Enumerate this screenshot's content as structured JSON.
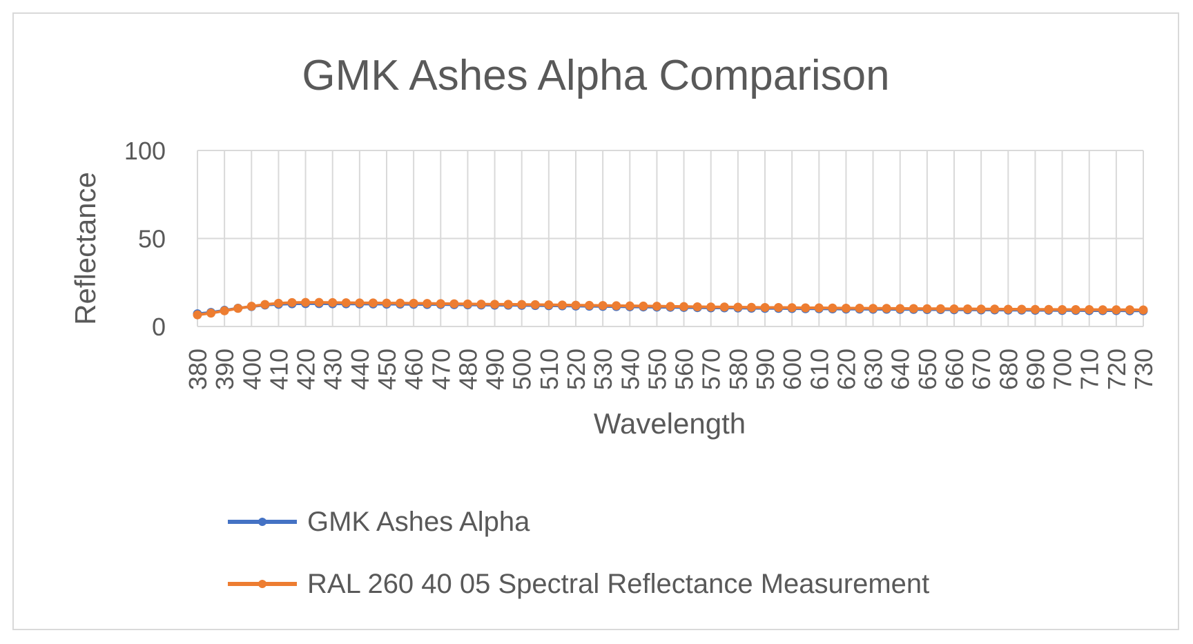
{
  "colors": {
    "series1": "#4472c4",
    "series2": "#ed7d31",
    "grid": "#d9d9d9",
    "text": "#595959"
  },
  "chart_data": {
    "type": "line",
    "title": "GMK Ashes Alpha Comparison",
    "xlabel": "Wavelength",
    "ylabel": "Reflectance",
    "ylim": [
      0,
      100
    ],
    "yticks": [
      0,
      50,
      100
    ],
    "x": [
      380,
      385,
      390,
      395,
      400,
      405,
      410,
      415,
      420,
      425,
      430,
      435,
      440,
      445,
      450,
      455,
      460,
      465,
      470,
      475,
      480,
      485,
      490,
      495,
      500,
      505,
      510,
      515,
      520,
      525,
      530,
      535,
      540,
      545,
      550,
      555,
      560,
      565,
      570,
      575,
      580,
      585,
      590,
      595,
      600,
      605,
      610,
      615,
      620,
      625,
      630,
      635,
      640,
      645,
      650,
      655,
      660,
      665,
      670,
      675,
      680,
      685,
      690,
      695,
      700,
      705,
      710,
      715,
      720,
      725,
      730
    ],
    "xtick_labels": [
      "380",
      "390",
      "400",
      "410",
      "420",
      "430",
      "440",
      "450",
      "460",
      "470",
      "480",
      "490",
      "500",
      "510",
      "520",
      "530",
      "540",
      "550",
      "560",
      "570",
      "580",
      "590",
      "600",
      "610",
      "620",
      "630",
      "640",
      "650",
      "660",
      "670",
      "680",
      "690",
      "700",
      "710",
      "720",
      "730"
    ],
    "grid": true,
    "legend_position": "bottom",
    "series": [
      {
        "name": "GMK Ashes Alpha",
        "values": [
          7.2,
          8.0,
          9.2,
          10.4,
          11.3,
          12.2,
          12.6,
          12.9,
          13.0,
          13.0,
          12.9,
          12.9,
          12.8,
          12.8,
          12.7,
          12.7,
          12.6,
          12.5,
          12.5,
          12.4,
          12.3,
          12.2,
          12.1,
          12.1,
          12.0,
          11.9,
          11.8,
          11.7,
          11.6,
          11.5,
          11.4,
          11.3,
          11.2,
          11.1,
          11.0,
          10.9,
          10.8,
          10.7,
          10.6,
          10.6,
          10.5,
          10.4,
          10.3,
          10.3,
          10.2,
          10.1,
          10.1,
          10.0,
          9.9,
          9.9,
          9.8,
          9.8,
          9.7,
          9.7,
          9.6,
          9.6,
          9.5,
          9.5,
          9.4,
          9.4,
          9.3,
          9.3,
          9.2,
          9.2,
          9.1,
          9.1,
          9.0,
          9.0,
          9.0,
          8.9,
          8.9
        ]
      },
      {
        "name": "RAL 260 40 05 Spectral Reflectance Measurement",
        "values": [
          6.6,
          7.6,
          8.9,
          10.3,
          11.5,
          12.5,
          13.2,
          13.6,
          13.7,
          13.7,
          13.6,
          13.5,
          13.4,
          13.4,
          13.3,
          13.3,
          13.2,
          13.1,
          13.0,
          12.9,
          12.8,
          12.7,
          12.6,
          12.6,
          12.5,
          12.4,
          12.3,
          12.2,
          12.1,
          12.0,
          11.9,
          11.8,
          11.7,
          11.6,
          11.5,
          11.4,
          11.3,
          11.2,
          11.1,
          11.1,
          11.0,
          10.9,
          10.8,
          10.8,
          10.7,
          10.6,
          10.6,
          10.5,
          10.4,
          10.4,
          10.3,
          10.3,
          10.2,
          10.2,
          10.1,
          10.1,
          10.0,
          10.0,
          9.9,
          9.9,
          9.8,
          9.8,
          9.7,
          9.7,
          9.6,
          9.6,
          9.6,
          9.5,
          9.5,
          9.5,
          9.4
        ]
      }
    ]
  }
}
